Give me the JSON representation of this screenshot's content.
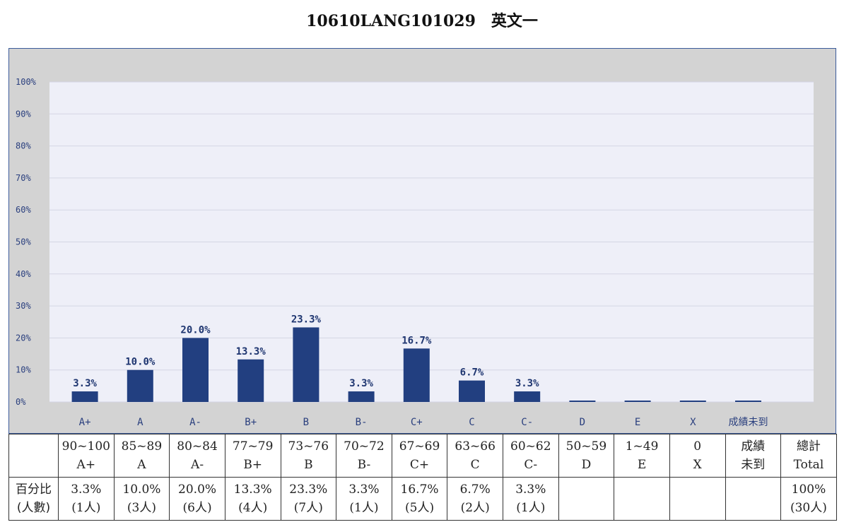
{
  "title": "10610LANG101029　英文一",
  "colors": {
    "bar": "#223f80",
    "plot_bg": "#eeeff8",
    "frame_bg": "#d3d3d3",
    "grid": "#d4d6e4"
  },
  "chart_data": {
    "type": "bar",
    "categories": [
      "A+",
      "A",
      "A-",
      "B+",
      "B",
      "B-",
      "C+",
      "C",
      "C-",
      "D",
      "E",
      "X",
      "成績未到"
    ],
    "values": [
      3.3,
      10.0,
      20.0,
      13.3,
      23.3,
      3.3,
      16.7,
      6.7,
      3.3,
      0,
      0,
      0,
      0
    ],
    "data_labels": [
      "3.3%",
      "10.0%",
      "20.0%",
      "13.3%",
      "23.3%",
      "3.3%",
      "16.7%",
      "6.7%",
      "3.3%",
      "",
      "",
      "",
      ""
    ],
    "ylim": [
      0,
      100
    ],
    "yticks": [
      "0%",
      "10%",
      "20%",
      "30%",
      "40%",
      "50%",
      "60%",
      "70%",
      "80%",
      "90%",
      "100%"
    ],
    "grid": true,
    "legend": "none"
  },
  "table": {
    "header": [
      {
        "top": "",
        "bottom": ""
      },
      {
        "top": "90~100",
        "bottom": "A+"
      },
      {
        "top": "85~89",
        "bottom": "A"
      },
      {
        "top": "80~84",
        "bottom": "A-"
      },
      {
        "top": "77~79",
        "bottom": "B+"
      },
      {
        "top": "73~76",
        "bottom": "B"
      },
      {
        "top": "70~72",
        "bottom": "B-"
      },
      {
        "top": "67~69",
        "bottom": "C+"
      },
      {
        "top": "63~66",
        "bottom": "C"
      },
      {
        "top": "60~62",
        "bottom": "C-"
      },
      {
        "top": "50~59",
        "bottom": "D"
      },
      {
        "top": "1~49",
        "bottom": "E"
      },
      {
        "top": "0",
        "bottom": "X"
      },
      {
        "top": "成績",
        "bottom": "未到"
      },
      {
        "top": "總計",
        "bottom": "Total"
      }
    ],
    "row": [
      {
        "top": "百分比",
        "bottom": "(人數)"
      },
      {
        "top": "3.3%",
        "bottom": "(1人)"
      },
      {
        "top": "10.0%",
        "bottom": "(3人)"
      },
      {
        "top": "20.0%",
        "bottom": "(6人)"
      },
      {
        "top": "13.3%",
        "bottom": "(4人)"
      },
      {
        "top": "23.3%",
        "bottom": "(7人)"
      },
      {
        "top": "3.3%",
        "bottom": "(1人)"
      },
      {
        "top": "16.7%",
        "bottom": "(5人)"
      },
      {
        "top": "6.7%",
        "bottom": "(2人)"
      },
      {
        "top": "3.3%",
        "bottom": "(1人)"
      },
      {
        "top": "",
        "bottom": ""
      },
      {
        "top": "",
        "bottom": ""
      },
      {
        "top": "",
        "bottom": ""
      },
      {
        "top": "",
        "bottom": ""
      },
      {
        "top": "100%",
        "bottom": "(30人)"
      }
    ]
  }
}
